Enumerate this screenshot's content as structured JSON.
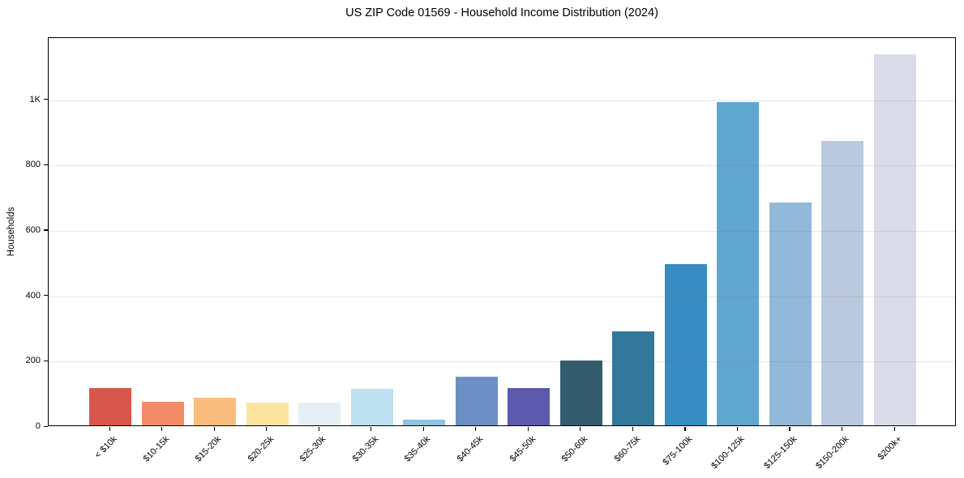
{
  "chart_data": {
    "type": "bar",
    "title": "US ZIP Code 01569 - Household Income Distribution (2024)",
    "xlabel": "",
    "ylabel": "Households",
    "categories": [
      "< $10k",
      "$10-15k",
      "$15-20k",
      "$20-25k",
      "$25-30k",
      "$30-35k",
      "$35-40k",
      "$40-45k",
      "$45-50k",
      "$50-60k",
      "$60-75k",
      "$75-100k",
      "$100-125k",
      "$125-150k",
      "$150-200k",
      "$200k+"
    ],
    "values": [
      113,
      72,
      84,
      70,
      70,
      111,
      18,
      150,
      114,
      198,
      288,
      494,
      990,
      683,
      871,
      1136
    ],
    "bar_colors": [
      "#d8564b",
      "#f28c68",
      "#fbbd7d",
      "#fce49e",
      "#e4f0f3",
      "#bde1ef",
      "#91c2df",
      "#6c90c5",
      "#5b59ab",
      "#345c6f",
      "#31789b",
      "#378cc1",
      "#60a7cf",
      "#91b8d8",
      "#bac9de",
      "#d9dbe9"
    ],
    "ylim": [
      0,
      1190
    ],
    "yticks": [
      {
        "value": 0,
        "label": "0"
      },
      {
        "value": 200,
        "label": "200"
      },
      {
        "value": 400,
        "label": "400"
      },
      {
        "value": 600,
        "label": "600"
      },
      {
        "value": 800,
        "label": "800"
      },
      {
        "value": 1000,
        "label": "1K"
      }
    ],
    "grid": "horizontal-only",
    "legend": "none",
    "axis_color": "#000000",
    "background_color": "#ffffff"
  }
}
